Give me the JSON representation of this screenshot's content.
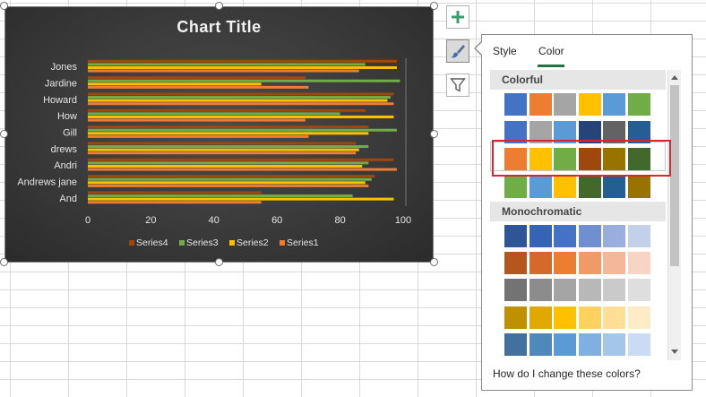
{
  "chart_data": {
    "type": "bar",
    "orientation": "horizontal",
    "title": "Chart Title",
    "categories": [
      "And",
      "Andrews jane",
      "Andri",
      "drews",
      "Gill",
      "How",
      "Howard",
      "Jardine",
      "Jones"
    ],
    "x_ticks": [
      "0",
      "20",
      "40",
      "60",
      "80",
      "100"
    ],
    "xlim": [
      0,
      100
    ],
    "series": [
      {
        "name": "Series1",
        "color": "#ed7d31",
        "values": [
          55,
          89,
          98,
          85,
          70,
          69,
          97,
          70,
          86
        ]
      },
      {
        "name": "Series2",
        "color": "#ffc000",
        "values": [
          97,
          88,
          87,
          86,
          89,
          97,
          95,
          55,
          98
        ]
      },
      {
        "name": "Series3",
        "color": "#70ad47",
        "values": [
          84,
          90,
          89,
          89,
          98,
          80,
          96,
          99,
          88
        ]
      },
      {
        "name": "Series4",
        "color": "#9e480e",
        "values": [
          55,
          91,
          97,
          85,
          89,
          88,
          97,
          69,
          98
        ]
      }
    ],
    "legend_position": "bottom",
    "legend_order": [
      "Series4",
      "Series3",
      "Series2",
      "Series1"
    ],
    "theme": "dark"
  },
  "side_buttons": [
    {
      "name": "chart-elements-button",
      "icon": "plus-icon",
      "active": false
    },
    {
      "name": "chart-styles-button",
      "icon": "paintbrush-icon",
      "active": true
    },
    {
      "name": "chart-filters-button",
      "icon": "funnel-icon",
      "active": false
    }
  ],
  "panel": {
    "tabs": {
      "style": "Style",
      "color": "Color"
    },
    "selected_tab": "Color",
    "sections": {
      "colorful": "Colorful",
      "monochromatic": "Monochromatic"
    },
    "colorful_rows": [
      [
        "#4472c4",
        "#ed7d31",
        "#a5a5a5",
        "#ffc000",
        "#5b9bd5",
        "#70ad47"
      ],
      [
        "#4472c4",
        "#a5a5a5",
        "#5b9bd5",
        "#264478",
        "#636363",
        "#255e91"
      ],
      [
        "#ed7d31",
        "#ffc000",
        "#70ad47",
        "#9e480e",
        "#997300",
        "#43682b"
      ],
      [
        "#70ad47",
        "#5b9bd5",
        "#ffc000",
        "#43682b",
        "#255e91",
        "#997300"
      ]
    ],
    "selected_colorful_row": 2,
    "monochromatic_rows": [
      [
        "#2f5597",
        "#3763b7",
        "#4472c4",
        "#6f8fd0",
        "#9aaede",
        "#c3d0ea"
      ],
      [
        "#b4561d",
        "#d4692b",
        "#ed7d31",
        "#f09a6a",
        "#f4b79a",
        "#f8d4c4"
      ],
      [
        "#737373",
        "#8c8c8c",
        "#a5a5a5",
        "#b8b8b8",
        "#cacaca",
        "#dedede"
      ],
      [
        "#bf9000",
        "#e0a800",
        "#ffc000",
        "#ffd15f",
        "#ffdf97",
        "#ffecc6"
      ],
      [
        "#41719c",
        "#4f88bb",
        "#5b9bd5",
        "#7fb0df",
        "#a4c6e9",
        "#c9dcf3"
      ]
    ],
    "help_text": "How do I change these colors?"
  }
}
